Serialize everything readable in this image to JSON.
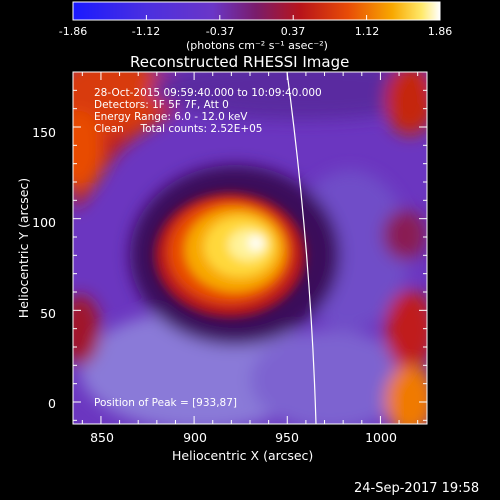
{
  "colorbar": {
    "ticks": [
      "-1.86",
      "-1.12",
      "-0.37",
      "0.37",
      "1.12",
      "1.86"
    ],
    "unit_label": "(photons cm⁻² s⁻¹ asec⁻²)",
    "colormap": [
      "#1a1aff",
      "#5a2fd6",
      "#6b3ac8",
      "#7a1e6e",
      "#b0161c",
      "#e04a08",
      "#f7a000",
      "#ffe35a",
      "#ffffff"
    ]
  },
  "plot": {
    "title": "Reconstructed RHESSI Image",
    "xlabel": "Heliocentric X (arcsec)",
    "ylabel": "Heliocentric Y (arcsec)",
    "x_ticks": [
      "850",
      "900",
      "950",
      "1000"
    ],
    "y_ticks": [
      "0",
      "50",
      "100",
      "150"
    ],
    "xlim": [
      835,
      1025
    ],
    "ylim": [
      -12,
      180
    ],
    "info_lines": [
      "28-Oct-2015 09:59:40.000 to 10:09:40.000",
      "Detectors: 1F 5F 7F, Att 0",
      "Energy Range: 6.0 - 12.0 keV",
      "Clean     Total counts: 2.52E+05"
    ],
    "peak_label": "Position of Peak = [933,87]",
    "peak": [
      933,
      87
    ]
  },
  "footer": {
    "timestamp": "24-Sep-2017 19:58"
  }
}
